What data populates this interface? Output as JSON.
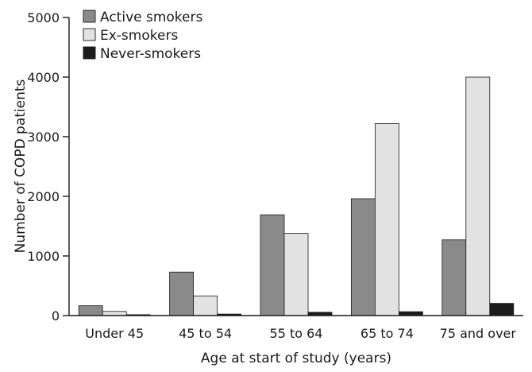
{
  "chart_data": {
    "type": "bar",
    "title": "",
    "xlabel": "Age at start of study (years)",
    "ylabel": "Number of COPD patients",
    "ylim": [
      0,
      5000
    ],
    "yticks": [
      "0",
      "1000",
      "2000",
      "3000",
      "4000",
      "5000"
    ],
    "categories": [
      "Under 45",
      "45 to 54",
      "55 to 64",
      "65 to 74",
      "75 and over"
    ],
    "series": [
      {
        "name": "Active smokers",
        "color": "#8a8a8a",
        "values": [
          165,
          730,
          1690,
          1960,
          1270
        ]
      },
      {
        "name": "Ex-smokers",
        "color": "#e2e2e2",
        "values": [
          70,
          330,
          1380,
          3220,
          4000
        ]
      },
      {
        "name": "Never-smokers",
        "color": "#1c1c1c",
        "values": [
          15,
          25,
          55,
          65,
          205
        ]
      }
    ],
    "grid": false,
    "legend_position": "top-left"
  }
}
